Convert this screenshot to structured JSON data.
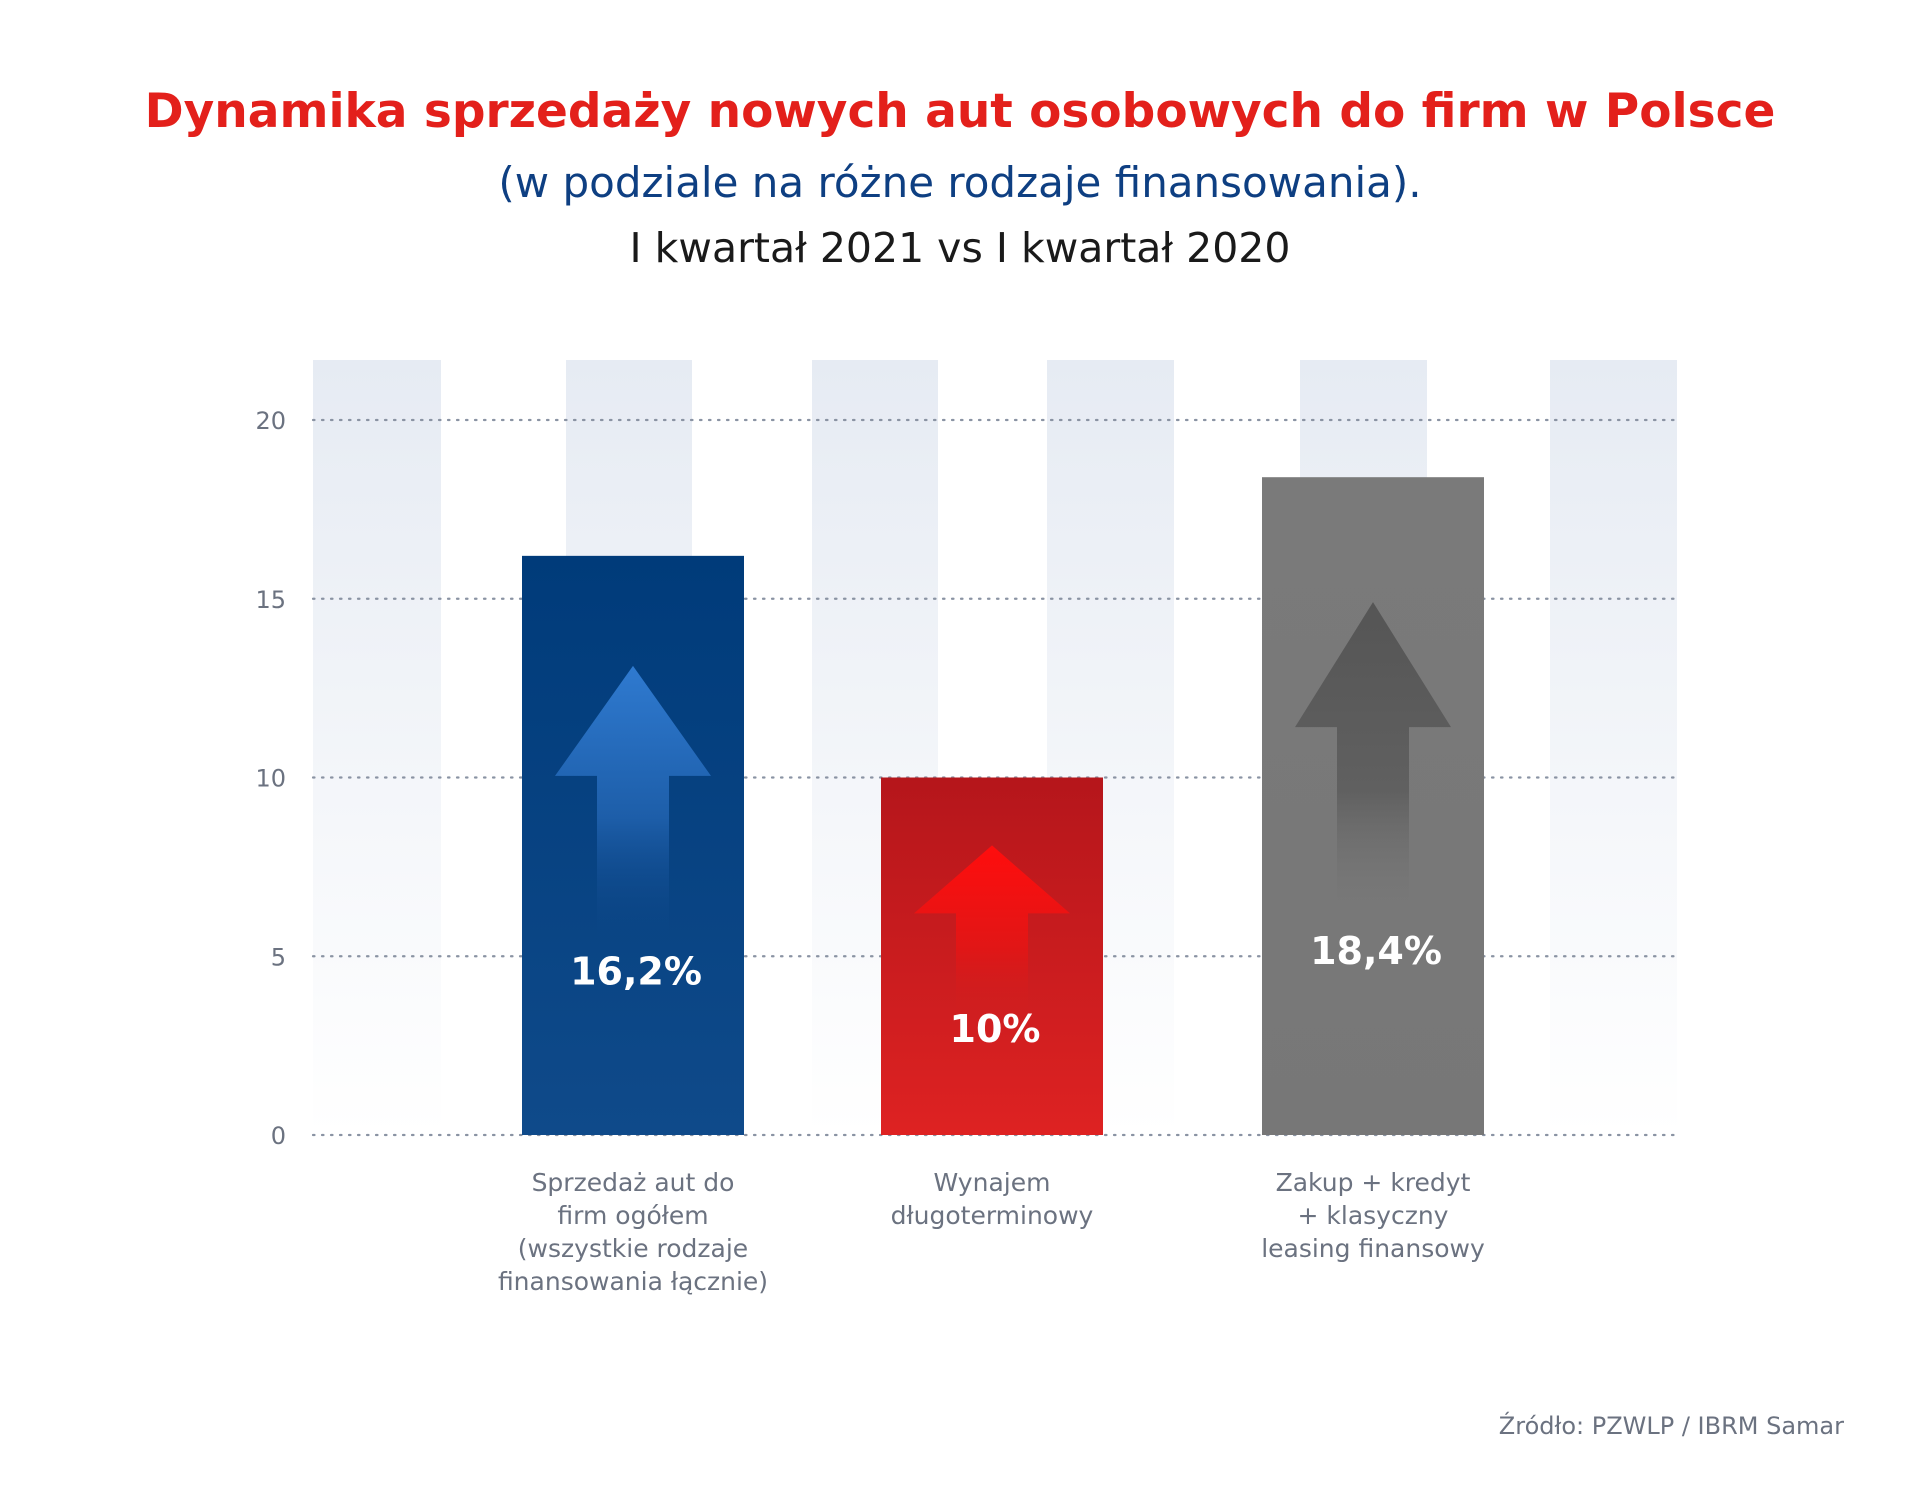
{
  "header": {
    "title": "Dynamika sprzedaży nowych aut osobowych do firm w Polsce",
    "subtitle": "(w podziale na różne rodzaje finansowania).",
    "period": "I kwartał 2021 vs I kwartał 2020"
  },
  "footer": {
    "source": "Źródło: PZWLP / IBRM Samar"
  },
  "chart_data": {
    "type": "bar",
    "categories": [
      "Sprzedaż aut do\nfirm ogółem\n(wszystkie rodzaje\nfinansowania łącznie)",
      "Wynajem\ndługoterminowy",
      "Zakup + kredyt\n+ klasyczny\nleasing finansowy"
    ],
    "values": [
      16.2,
      10,
      18.4
    ],
    "data_labels": [
      "16,2%",
      "10%",
      "18,4%"
    ],
    "colors": [
      "#0e3f82",
      "#d01f1f",
      "#787878"
    ],
    "y_ticks": [
      0,
      5,
      10,
      15,
      20
    ],
    "ylim": [
      0,
      21.5
    ],
    "grid": true
  }
}
